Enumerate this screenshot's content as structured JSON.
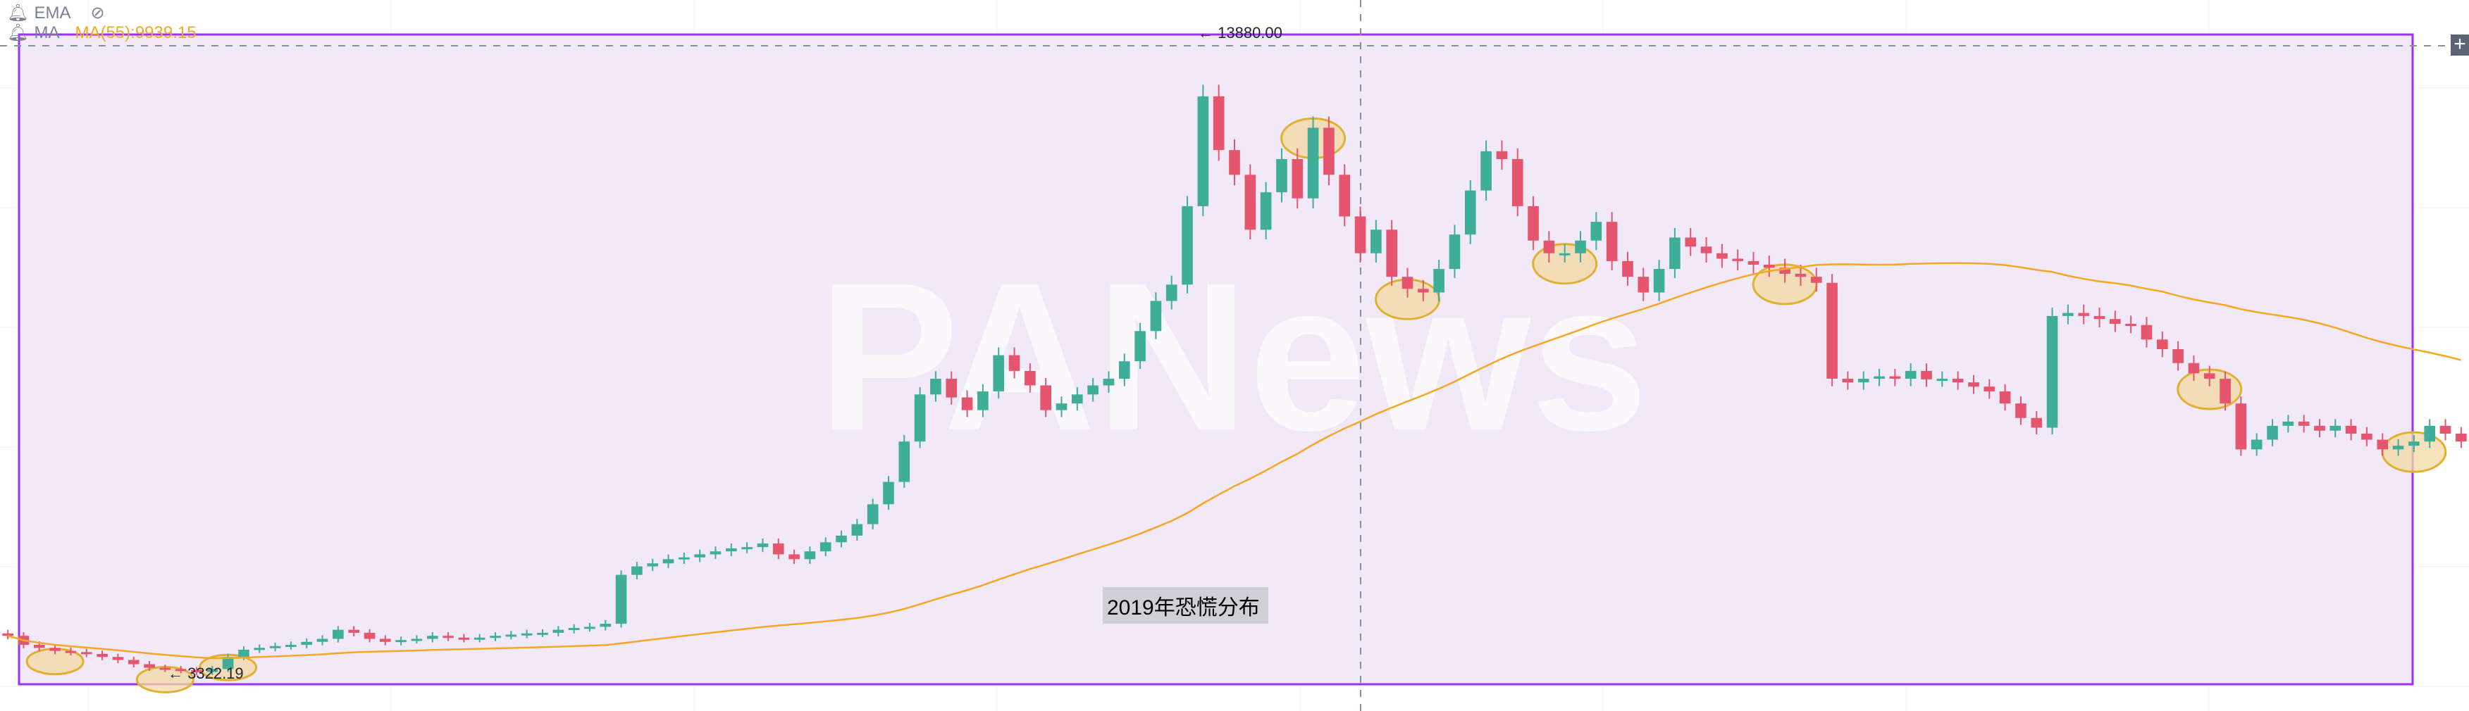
{
  "legend": {
    "ema_label": "EMA",
    "ma_label": "MA",
    "ma_value": "MA(55):9939.15",
    "icons": [
      "bell-icon",
      "eye-off-icon"
    ]
  },
  "annotation_text": "2019年恐慌分布",
  "watermark": "PANews",
  "colors": {
    "up": "#3fae98",
    "down": "#e5566e",
    "ma": "#f5a623",
    "box": "#9b30ff",
    "box_fill": "#f1e8f8"
  },
  "chart_data": {
    "type": "candlestick",
    "title": "",
    "high_label": "13880.00",
    "low_label": "3322.19",
    "high": 13880,
    "low": 3322.19,
    "ma_period": 55,
    "ylim": [
      3322.19,
      13880
    ],
    "grid": true,
    "closes": [
      3950,
      3800,
      3750,
      3700,
      3680,
      3650,
      3600,
      3550,
      3480,
      3420,
      3400,
      3380,
      3350,
      3400,
      3600,
      3720,
      3750,
      3780,
      3800,
      3850,
      3900,
      4050,
      4000,
      3900,
      3850,
      3880,
      3900,
      3950,
      3920,
      3900,
      3920,
      3950,
      3970,
      3990,
      4000,
      4050,
      4080,
      4100,
      4150,
      4960,
      5100,
      5150,
      5220,
      5250,
      5300,
      5350,
      5400,
      5420,
      5480,
      5300,
      5220,
      5350,
      5500,
      5610,
      5800,
      6130,
      6500,
      7170,
      7950,
      8210,
      7900,
      7690,
      8000,
      8600,
      8340,
      8100,
      7690,
      7800,
      7950,
      8100,
      8210,
      8500,
      9000,
      9500,
      9770,
      11070,
      12890,
      12000,
      11590,
      10680,
      11300,
      11850,
      11200,
      12370,
      11590,
      10900,
      10290,
      10680,
      9900,
      9700,
      9640,
      10030,
      10600,
      11330,
      11980,
      11850,
      11070,
      10500,
      10290,
      10290,
      10500,
      10810,
      10160,
      9900,
      9640,
      10030,
      10550,
      10400,
      10290,
      10200,
      10160,
      10100,
      10050,
      9950,
      9900,
      9800,
      8210,
      8150,
      8210,
      8250,
      8210,
      8340,
      8200,
      8210,
      8150,
      8080,
      8000,
      7800,
      7560,
      7400,
      9250,
      9300,
      9250,
      9200,
      9120,
      9100,
      8860,
      8700,
      8470,
      8300,
      8210,
      7800,
      7040,
      7200,
      7430,
      7500,
      7430,
      7350,
      7430,
      7300,
      7200,
      7040,
      7100,
      7170,
      7430,
      7300,
      7170
    ]
  }
}
